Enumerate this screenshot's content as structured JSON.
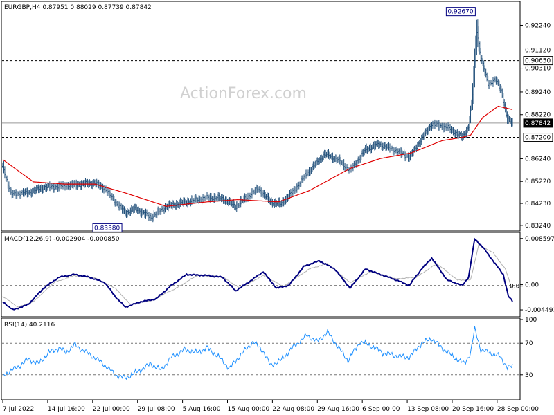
{
  "colors": {
    "background": "#ffffff",
    "frame": "#000000",
    "price_bars": "#1f4e79",
    "sma": "#e00000",
    "macd_line": "#000080",
    "macd_signal": "#b0b0b0",
    "rsi_line": "#1e90ff",
    "dashed_level": "#000000",
    "label_box_stroke": "#000080",
    "label_box_text": "#000080",
    "watermark": "#d0d0d0"
  },
  "watermark": "ActionForex.com",
  "chart_data": [
    {
      "type": "ohlc",
      "title": "EURGBP,H4  0.87951 0.88029 0.87739 0.87842",
      "symbol": "EURGBP",
      "timeframe": "H4",
      "last_ohlc": {
        "open": 0.87951,
        "high": 0.88029,
        "low": 0.87739,
        "close": 0.87842
      },
      "ylim": [
        0.8305,
        0.9325
      ],
      "y_ticks": [
        "0.92240",
        "0.91120",
        "0.90310",
        "0.89240",
        "0.88220",
        "0.86240",
        "0.85220",
        "0.84230",
        "0.83240"
      ],
      "y_tick_values": [
        0.9224,
        0.9112,
        0.9031,
        0.8924,
        0.8822,
        0.8624,
        0.8522,
        0.8423,
        0.8324
      ],
      "levels": [
        {
          "value": 0.9065,
          "label": "0.90650",
          "style": "dashed",
          "boxed": true
        },
        {
          "value": 0.872,
          "label": "0.87200",
          "style": "dashed",
          "boxed": true
        },
        {
          "value": 0.87842,
          "label": "0.87842",
          "style": "solid",
          "boxed": true
        }
      ],
      "annotations": [
        {
          "label": "0.92670",
          "value": 0.9267,
          "anchor_date": "2022-09-23 08:00"
        },
        {
          "label": "0.83380",
          "value": 0.8338,
          "anchor_date": "2022-07-26 16:00"
        }
      ],
      "x_tick_labels": [
        "7 Jul 2022",
        "14 Jul 16:00",
        "22 Jul 00:00",
        "29 Jul 08:00",
        "5 Aug 16:00",
        "15 Aug 00:00",
        "22 Aug 08:00",
        "29 Aug 16:00",
        "6 Sep 00:00",
        "13 Sep 08:00",
        "20 Sep 16:00",
        "28 Sep 00:00"
      ],
      "x_anchors": [
        0,
        44,
        88,
        132,
        176,
        220,
        264,
        308,
        352,
        396,
        440,
        484
      ],
      "bar_count": 500,
      "price_keyframes": [
        [
          0,
          0.859
        ],
        [
          8,
          0.8465
        ],
        [
          25,
          0.8472
        ],
        [
          40,
          0.8495
        ],
        [
          55,
          0.85
        ],
        [
          75,
          0.851
        ],
        [
          90,
          0.8515
        ],
        [
          100,
          0.849
        ],
        [
          110,
          0.843
        ],
        [
          120,
          0.838
        ],
        [
          130,
          0.84
        ],
        [
          145,
          0.836
        ],
        [
          160,
          0.841
        ],
        [
          180,
          0.843
        ],
        [
          200,
          0.845
        ],
        [
          215,
          0.8445
        ],
        [
          228,
          0.841
        ],
        [
          240,
          0.8455
        ],
        [
          250,
          0.849
        ],
        [
          262,
          0.843
        ],
        [
          272,
          0.842
        ],
        [
          285,
          0.848
        ],
        [
          298,
          0.856
        ],
        [
          315,
          0.8645
        ],
        [
          328,
          0.862
        ],
        [
          340,
          0.857
        ],
        [
          355,
          0.8665
        ],
        [
          368,
          0.869
        ],
        [
          385,
          0.866
        ],
        [
          398,
          0.863
        ],
        [
          408,
          0.87
        ],
        [
          420,
          0.878
        ],
        [
          435,
          0.8765
        ],
        [
          450,
          0.872
        ],
        [
          456,
          0.877
        ],
        [
          460,
          0.891
        ],
        [
          464,
          0.92
        ],
        [
          468,
          0.908
        ],
        [
          475,
          0.896
        ],
        [
          482,
          0.898
        ],
        [
          488,
          0.893
        ],
        [
          494,
          0.88
        ],
        [
          499,
          0.8784
        ]
      ],
      "sma_keyframes": [
        [
          0,
          0.862
        ],
        [
          30,
          0.852
        ],
        [
          60,
          0.851
        ],
        [
          90,
          0.851
        ],
        [
          120,
          0.847
        ],
        [
          160,
          0.841
        ],
        [
          200,
          0.843
        ],
        [
          230,
          0.844
        ],
        [
          270,
          0.843
        ],
        [
          300,
          0.848
        ],
        [
          340,
          0.858
        ],
        [
          370,
          0.8625
        ],
        [
          400,
          0.865
        ],
        [
          430,
          0.8705
        ],
        [
          450,
          0.872
        ],
        [
          458,
          0.873
        ],
        [
          470,
          0.881
        ],
        [
          485,
          0.886
        ],
        [
          499,
          0.8845
        ]
      ]
    },
    {
      "type": "line",
      "title": "MACD(12,26,9) -0.002904 -0.000850",
      "indicator": "MACD(12,26,9)",
      "values_printed": {
        "macd": -0.002904,
        "signal": -0.00085
      },
      "ylim": [
        -0.0055,
        0.0092
      ],
      "y_ticks": [
        "0.008597",
        "0.00",
        "0.0",
        "-0.004491"
      ],
      "y_tick_values": [
        0.008597,
        0.0,
        0.0,
        -0.004491
      ],
      "zero_line": 0.0,
      "macd_keyframes": [
        [
          0,
          -0.003
        ],
        [
          10,
          -0.0045
        ],
        [
          25,
          -0.0035
        ],
        [
          40,
          -0.0005
        ],
        [
          55,
          0.0015
        ],
        [
          70,
          0.002
        ],
        [
          85,
          0.0015
        ],
        [
          100,
          0.0005
        ],
        [
          110,
          -0.002
        ],
        [
          120,
          -0.004
        ],
        [
          135,
          -0.003
        ],
        [
          150,
          -0.0025
        ],
        [
          165,
          0.0
        ],
        [
          180,
          0.002
        ],
        [
          200,
          0.0018
        ],
        [
          215,
          0.0015
        ],
        [
          228,
          -0.001
        ],
        [
          240,
          0.0005
        ],
        [
          255,
          0.0025
        ],
        [
          268,
          -0.0005
        ],
        [
          280,
          0.0
        ],
        [
          295,
          0.0035
        ],
        [
          310,
          0.0045
        ],
        [
          325,
          0.003
        ],
        [
          340,
          -0.0005
        ],
        [
          355,
          0.003
        ],
        [
          370,
          0.002
        ],
        [
          385,
          0.001
        ],
        [
          398,
          0.0
        ],
        [
          410,
          0.003
        ],
        [
          420,
          0.005
        ],
        [
          435,
          0.001
        ],
        [
          450,
          0.0
        ],
        [
          456,
          0.0015
        ],
        [
          462,
          0.0085
        ],
        [
          470,
          0.007
        ],
        [
          480,
          0.0045
        ],
        [
          490,
          0.002
        ],
        [
          495,
          -0.002
        ],
        [
          499,
          -0.0029
        ]
      ],
      "signal_keyframes": [
        [
          0,
          -0.002
        ],
        [
          15,
          -0.004
        ],
        [
          30,
          -0.003
        ],
        [
          50,
          0.0005
        ],
        [
          70,
          0.0018
        ],
        [
          90,
          0.0014
        ],
        [
          110,
          -0.0005
        ],
        [
          125,
          -0.0035
        ],
        [
          145,
          -0.0028
        ],
        [
          170,
          -0.0005
        ],
        [
          190,
          0.0018
        ],
        [
          215,
          0.0016
        ],
        [
          232,
          -0.0005
        ],
        [
          255,
          0.0018
        ],
        [
          275,
          -0.0002
        ],
        [
          300,
          0.003
        ],
        [
          318,
          0.004
        ],
        [
          340,
          0.0005
        ],
        [
          360,
          0.0025
        ],
        [
          385,
          0.0012
        ],
        [
          405,
          0.0015
        ],
        [
          425,
          0.004
        ],
        [
          445,
          0.001
        ],
        [
          458,
          0.001
        ],
        [
          466,
          0.0075
        ],
        [
          480,
          0.006
        ],
        [
          492,
          0.003
        ],
        [
          499,
          -0.0008
        ]
      ]
    },
    {
      "type": "line",
      "title": "RSI(14) 40.2116",
      "indicator": "RSI(14)",
      "value_printed": 40.2116,
      "ylim": [
        0,
        100
      ],
      "y_ticks": [
        "100",
        "70",
        "30"
      ],
      "y_tick_values": [
        100,
        70,
        30
      ],
      "levels": [
        70,
        30
      ],
      "rsi_keyframes": [
        [
          0,
          28
        ],
        [
          6,
          34
        ],
        [
          15,
          40
        ],
        [
          25,
          50
        ],
        [
          35,
          44
        ],
        [
          45,
          58
        ],
        [
          55,
          64
        ],
        [
          62,
          58
        ],
        [
          70,
          68
        ],
        [
          80,
          60
        ],
        [
          92,
          50
        ],
        [
          102,
          40
        ],
        [
          110,
          30
        ],
        [
          120,
          26
        ],
        [
          132,
          34
        ],
        [
          145,
          44
        ],
        [
          155,
          36
        ],
        [
          165,
          52
        ],
        [
          178,
          62
        ],
        [
          190,
          58
        ],
        [
          200,
          64
        ],
        [
          212,
          52
        ],
        [
          222,
          38
        ],
        [
          232,
          54
        ],
        [
          245,
          72
        ],
        [
          255,
          60
        ],
        [
          262,
          42
        ],
        [
          272,
          48
        ],
        [
          285,
          66
        ],
        [
          298,
          80
        ],
        [
          308,
          72
        ],
        [
          318,
          84
        ],
        [
          328,
          66
        ],
        [
          338,
          48
        ],
        [
          350,
          72
        ],
        [
          362,
          66
        ],
        [
          372,
          58
        ],
        [
          385,
          54
        ],
        [
          398,
          52
        ],
        [
          410,
          70
        ],
        [
          420,
          76
        ],
        [
          430,
          64
        ],
        [
          442,
          52
        ],
        [
          452,
          44
        ],
        [
          458,
          58
        ],
        [
          462,
          88
        ],
        [
          468,
          62
        ],
        [
          476,
          58
        ],
        [
          486,
          54
        ],
        [
          494,
          40
        ],
        [
          499,
          40
        ]
      ]
    }
  ]
}
